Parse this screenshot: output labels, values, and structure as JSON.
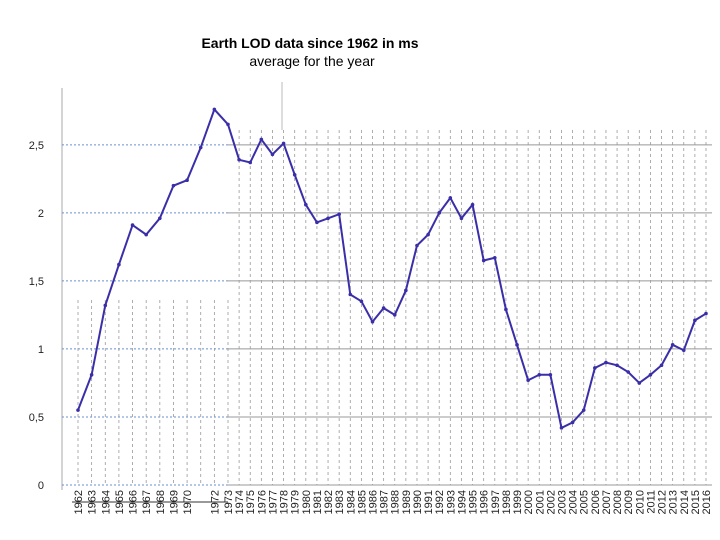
{
  "chart_data": {
    "type": "line",
    "title": "Earth LOD data since 1962 in ms",
    "subtitle": "average for the year",
    "categories": [
      "1962",
      "1963",
      "1964",
      "1965",
      "1966",
      "1967",
      "1968",
      "1969",
      "1970",
      null,
      "1972",
      "1973",
      "1974",
      "1975",
      "1976",
      "1977",
      "1978",
      "1979",
      "1980",
      "1981",
      "1982",
      "1983",
      "1984",
      "1985",
      "1986",
      "1987",
      "1988",
      "1989",
      "1990",
      "1991",
      "1992",
      "1993",
      "1994",
      "1995",
      "1996",
      "1997",
      "1998",
      "1999",
      "2000",
      "2001",
      "2002",
      "2003",
      "2004",
      "2005",
      "2006",
      "2007",
      "2008",
      "2009",
      "2010",
      "2011",
      "2012",
      "2013",
      "2014",
      "2015",
      "2016"
    ],
    "series": [
      {
        "color": "#3a2fa8",
        "values": [
          0.55,
          0.81,
          1.32,
          1.62,
          1.91,
          1.84,
          1.96,
          2.2,
          2.24,
          2.48,
          2.76,
          2.65,
          2.39,
          2.37,
          2.54,
          2.43,
          2.51,
          2.28,
          2.06,
          1.93,
          1.96,
          1.99,
          1.4,
          1.35,
          1.2,
          1.3,
          1.25,
          1.43,
          1.76,
          1.84,
          2.0,
          2.11,
          1.96,
          2.06,
          1.65,
          1.67,
          1.29,
          1.03,
          0.77,
          0.81,
          0.81,
          0.42,
          0.46,
          0.55,
          0.86,
          0.9,
          0.88,
          0.83,
          0.75,
          0.81,
          0.88,
          1.03,
          0.99,
          1.21,
          1.26
        ]
      }
    ],
    "ylim": [
      0,
      2.8
    ],
    "yticks": [
      0,
      {
        "value": 0.5,
        "label": "0,5"
      },
      1,
      {
        "value": 1.5,
        "label": "1,5"
      },
      2,
      {
        "value": 2.5,
        "label": "2,5"
      }
    ],
    "grid": true
  }
}
